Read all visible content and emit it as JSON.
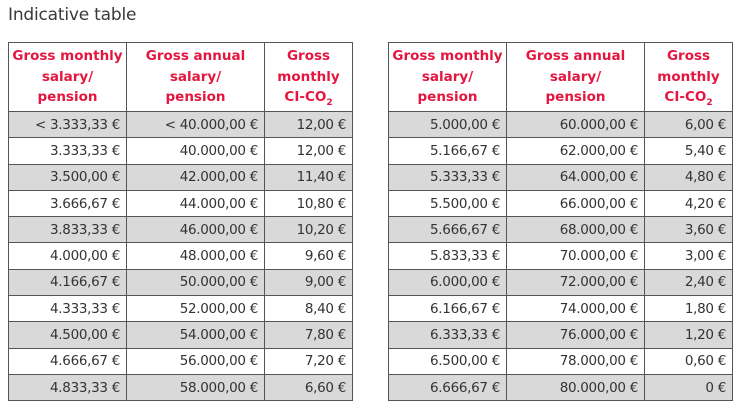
{
  "page": {
    "title": "Indicative table"
  },
  "colors": {
    "header_text": "#e4163f",
    "row_shade": "#d9d9d9",
    "border": "#555555"
  },
  "tables": [
    {
      "headers": [
        [
          "Gross monthly",
          "salary/",
          "pension"
        ],
        [
          "Gross annual",
          "salary/",
          "pension"
        ],
        [
          "Gross",
          "monthly",
          "CI-CO",
          "2"
        ]
      ],
      "rows": [
        [
          "< 3.333,33 €",
          "< 40.000,00 €",
          "12,00 €"
        ],
        [
          "3.333,33 €",
          "40.000,00 €",
          "12,00 €"
        ],
        [
          "3.500,00 €",
          "42.000,00 €",
          "11,40 €"
        ],
        [
          "3.666,67 €",
          "44.000,00 €",
          "10,80 €"
        ],
        [
          "3.833,33 €",
          "46.000,00 €",
          "10,20 €"
        ],
        [
          "4.000,00 €",
          "48.000,00 €",
          "9,60 €"
        ],
        [
          "4.166,67 €",
          "50.000,00 €",
          "9,00 €"
        ],
        [
          "4.333,33 €",
          "52.000,00 €",
          "8,40 €"
        ],
        [
          "4.500,00 €",
          "54.000,00 €",
          "7,80 €"
        ],
        [
          "4.666,67 €",
          "56.000,00 €",
          "7,20 €"
        ],
        [
          "4.833,33 €",
          "58.000,00 €",
          "6,60 €"
        ]
      ]
    },
    {
      "headers": [
        [
          "Gross monthly",
          "salary/",
          "pension"
        ],
        [
          "Gross annual",
          "salary/",
          "pension"
        ],
        [
          "Gross",
          "monthly",
          "CI-CO",
          "2"
        ]
      ],
      "rows": [
        [
          "5.000,00 €",
          "60.000,00 €",
          "6,00 €"
        ],
        [
          "5.166,67 €",
          "62.000,00 €",
          "5,40 €"
        ],
        [
          "5.333,33 €",
          "64.000,00 €",
          "4,80 €"
        ],
        [
          "5.500,00 €",
          "66.000,00 €",
          "4,20 €"
        ],
        [
          "5.666,67 €",
          "68.000,00 €",
          "3,60 €"
        ],
        [
          "5.833,33 €",
          "70.000,00 €",
          "3,00 €"
        ],
        [
          "6.000,00 €",
          "72.000,00 €",
          "2,40 €"
        ],
        [
          "6.166,67 €",
          "74.000,00 €",
          "1,80 €"
        ],
        [
          "6.333,33 €",
          "76.000,00 €",
          "1,20 €"
        ],
        [
          "6.500,00 €",
          "78.000,00 €",
          "0,60 €"
        ],
        [
          "6.666,67 €",
          "80.000,00 €",
          "0 €"
        ]
      ]
    }
  ]
}
